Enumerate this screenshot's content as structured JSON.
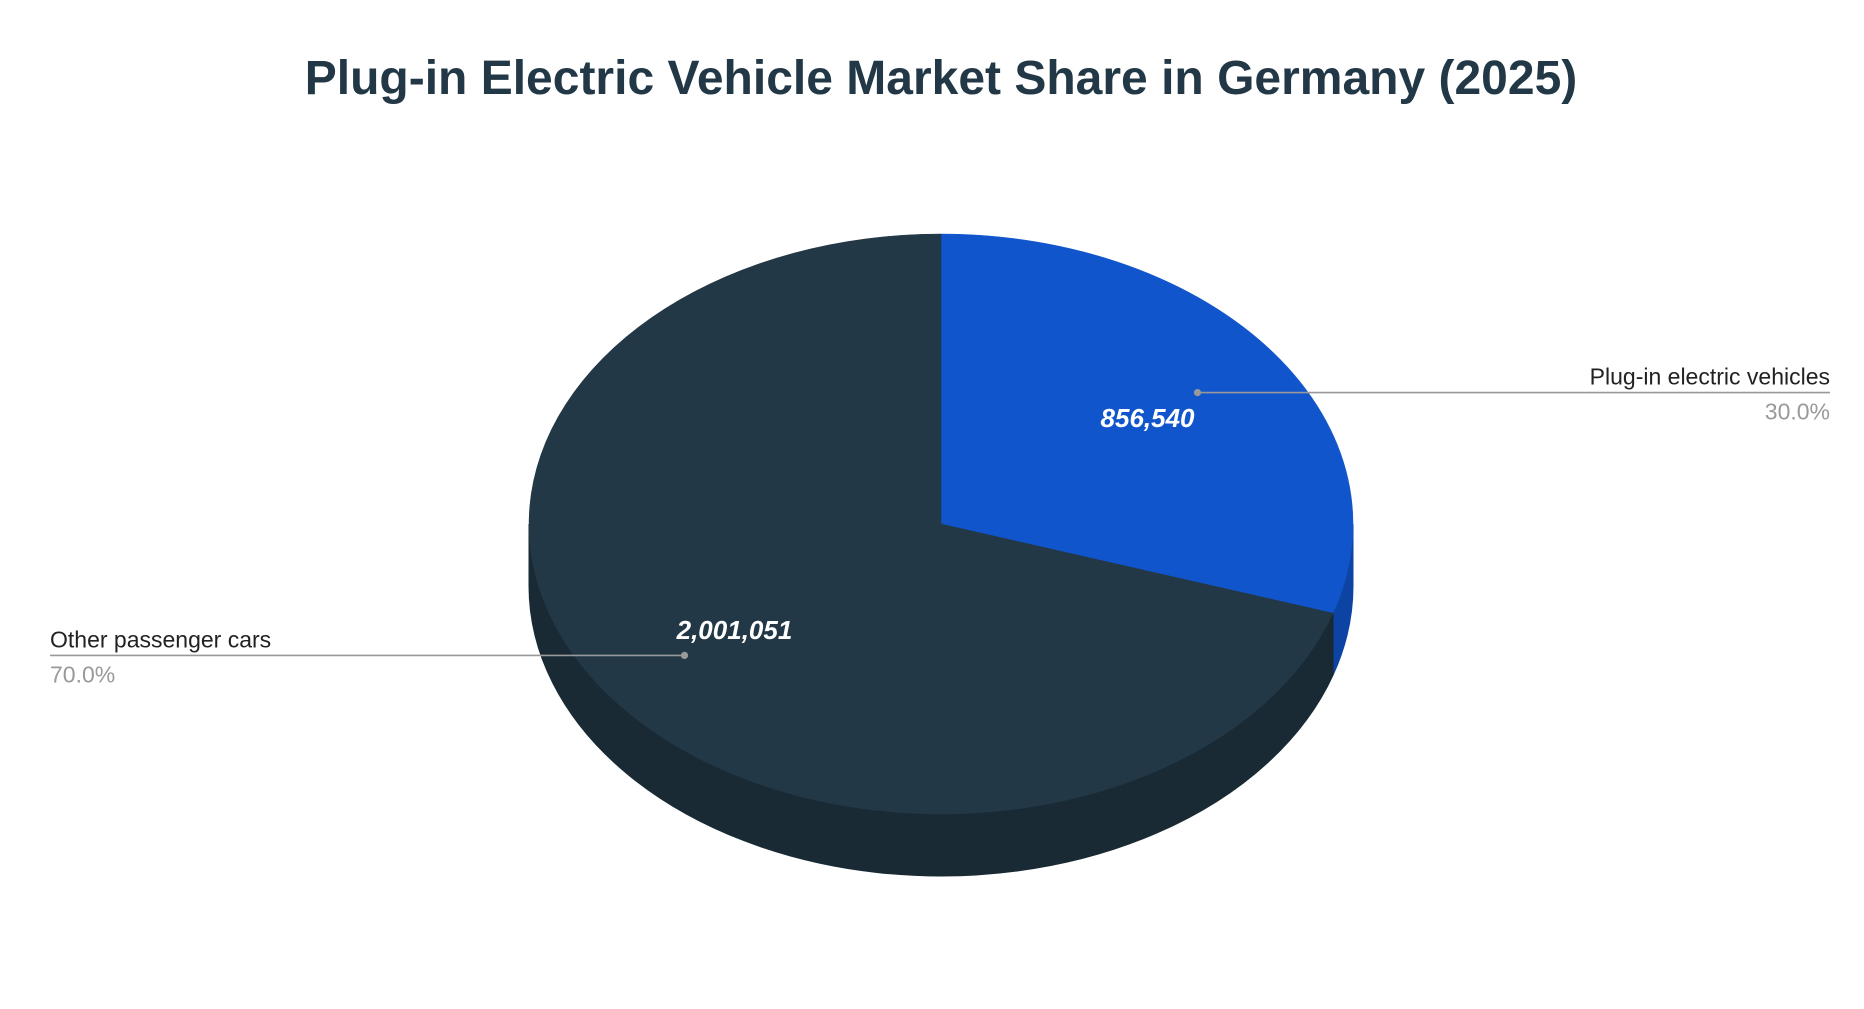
{
  "chart_data": {
    "type": "pie",
    "style": "3d",
    "title": "Plug-in Electric Vehicle Market Share in Germany (2025)",
    "slices": [
      {
        "label": "Plug-in electric vehicles",
        "value": 856540,
        "value_label": "856,540",
        "percent": 30.0,
        "percent_label": "30.0%",
        "color": "#1155CC",
        "side_color": "#0D44A3"
      },
      {
        "label": "Other passenger cars",
        "value": 2001051,
        "value_label": "2,001,051",
        "percent": 70.0,
        "percent_label": "70.0%",
        "color": "#223846",
        "side_color": "#192A34"
      }
    ],
    "start_angle": "12 o'clock",
    "direction": "clockwise",
    "legend": "none (leader-line labels)",
    "colors": {
      "title": "#223846",
      "label": "#222222",
      "percent": "#999999",
      "leader_line": "#999999",
      "value_label": "#ffffff"
    }
  }
}
